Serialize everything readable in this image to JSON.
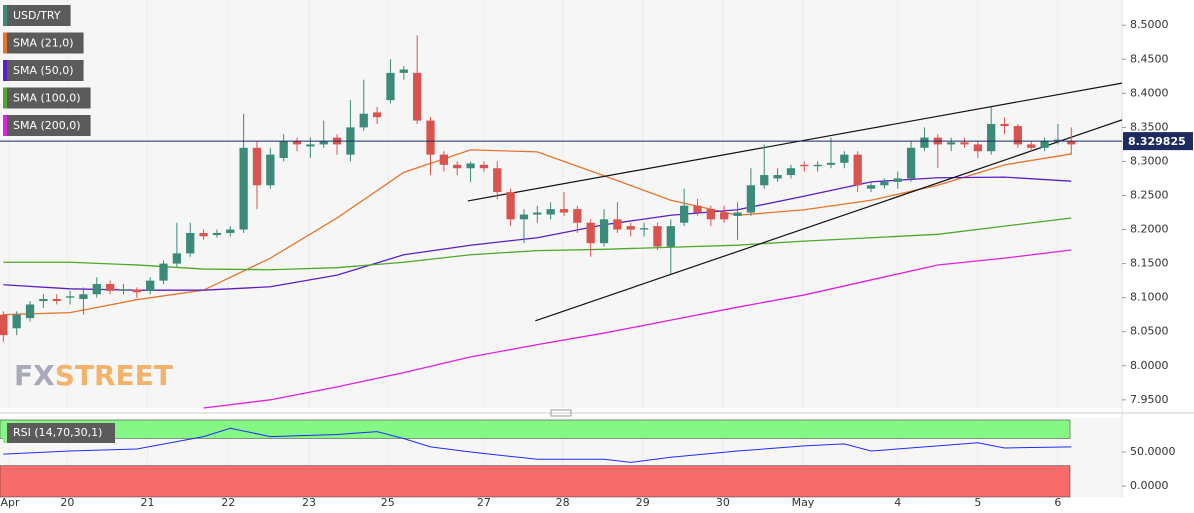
{
  "chart_data": [
    {
      "type": "candlestick",
      "name": "USD/TRY",
      "up_color": "#3b8a7a",
      "down_color": "#d9534f",
      "open": [
        8.075,
        8.055,
        8.07,
        8.095,
        8.098,
        8.1,
        8.098,
        8.105,
        8.12,
        8.11,
        8.112,
        8.11,
        8.125,
        8.15,
        8.165,
        8.195,
        8.192,
        8.195,
        8.2,
        8.32,
        8.265,
        8.305,
        8.33,
        8.322,
        8.325,
        8.335,
        8.31,
        8.35,
        8.372,
        8.39,
        8.43,
        8.43,
        8.36,
        8.31,
        8.295,
        8.29,
        8.295,
        8.29,
        8.255,
        8.215,
        8.222,
        8.222,
        8.23,
        8.23,
        8.21,
        8.18,
        8.215,
        8.205,
        8.2,
        8.205,
        8.175,
        8.21,
        8.235,
        8.23,
        8.225,
        8.22,
        8.225,
        8.265,
        8.275,
        8.28,
        8.295,
        8.293,
        8.295,
        8.298,
        8.31,
        8.26,
        8.265,
        8.27,
        8.275,
        8.32,
        8.335,
        8.325,
        8.328,
        8.325,
        8.315,
        8.355,
        8.352,
        8.325,
        8.32,
        8.33,
        8.33
      ],
      "high": [
        8.08,
        8.08,
        8.095,
        8.105,
        8.105,
        8.11,
        8.115,
        8.13,
        8.125,
        8.12,
        8.115,
        8.13,
        8.155,
        8.21,
        8.21,
        8.2,
        8.2,
        8.205,
        8.37,
        8.33,
        8.32,
        8.34,
        8.335,
        8.335,
        8.36,
        8.34,
        8.39,
        8.42,
        8.38,
        8.45,
        8.44,
        8.485,
        8.365,
        8.315,
        8.3,
        8.3,
        8.3,
        8.3,
        8.26,
        8.23,
        8.235,
        8.24,
        8.255,
        8.235,
        8.215,
        8.23,
        8.24,
        8.21,
        8.21,
        8.21,
        8.215,
        8.26,
        8.245,
        8.235,
        8.235,
        8.24,
        8.29,
        8.325,
        8.29,
        8.295,
        8.3,
        8.3,
        8.335,
        8.315,
        8.315,
        8.27,
        8.275,
        8.285,
        8.33,
        8.35,
        8.34,
        8.335,
        8.335,
        8.33,
        8.38,
        8.365,
        8.355,
        8.33,
        8.335,
        8.355,
        8.35
      ],
      "low": [
        8.035,
        8.045,
        8.065,
        8.085,
        8.09,
        8.09,
        8.075,
        8.1,
        8.105,
        8.105,
        8.1,
        8.105,
        8.12,
        8.145,
        8.16,
        8.185,
        8.188,
        8.19,
        8.195,
        8.23,
        8.26,
        8.3,
        8.315,
        8.305,
        8.32,
        8.31,
        8.3,
        8.345,
        8.355,
        8.385,
        8.42,
        8.355,
        8.28,
        8.285,
        8.28,
        8.27,
        8.285,
        8.245,
        8.205,
        8.18,
        8.21,
        8.215,
        8.22,
        8.195,
        8.16,
        8.175,
        8.195,
        8.19,
        8.19,
        8.17,
        8.135,
        8.205,
        8.22,
        8.205,
        8.21,
        8.185,
        8.22,
        8.26,
        8.27,
        8.275,
        8.285,
        8.285,
        8.29,
        8.29,
        8.255,
        8.255,
        8.26,
        8.26,
        8.27,
        8.315,
        8.29,
        8.315,
        8.32,
        8.305,
        8.31,
        8.34,
        8.32,
        8.315,
        8.315,
        8.325,
        8.31
      ],
      "close": [
        8.045,
        8.075,
        8.09,
        8.098,
        8.095,
        8.102,
        8.105,
        8.12,
        8.11,
        8.112,
        8.108,
        8.125,
        8.15,
        8.165,
        8.195,
        8.19,
        8.195,
        8.2,
        8.32,
        8.265,
        8.31,
        8.33,
        8.325,
        8.325,
        8.33,
        8.325,
        8.35,
        8.37,
        8.365,
        8.43,
        8.435,
        8.36,
        8.31,
        8.295,
        8.29,
        8.297,
        8.29,
        8.255,
        8.215,
        8.222,
        8.225,
        8.23,
        8.225,
        8.21,
        8.18,
        8.215,
        8.2,
        8.2,
        8.202,
        8.175,
        8.205,
        8.235,
        8.225,
        8.215,
        8.215,
        8.225,
        8.265,
        8.28,
        8.28,
        8.29,
        8.293,
        8.295,
        8.298,
        8.31,
        8.265,
        8.265,
        8.27,
        8.275,
        8.32,
        8.335,
        8.325,
        8.328,
        8.325,
        8.315,
        8.355,
        8.352,
        8.325,
        8.32,
        8.33,
        8.332,
        8.325
      ],
      "overlays": [
        {
          "name": "SMA (21,0)",
          "color": "#e8742a",
          "x": [
            0,
            5,
            10,
            15,
            20,
            25,
            30,
            35,
            40,
            45,
            50,
            55,
            60,
            65,
            70,
            75,
            80
          ],
          "values": [
            8.075,
            8.078,
            8.097,
            8.111,
            8.158,
            8.217,
            8.284,
            8.317,
            8.314,
            8.279,
            8.243,
            8.221,
            8.229,
            8.243,
            8.265,
            8.295,
            8.311
          ]
        },
        {
          "name": "SMA (50,0)",
          "color": "#5a1fc7",
          "x": [
            0,
            5,
            10,
            15,
            20,
            25,
            30,
            35,
            40,
            45,
            50,
            55,
            60,
            65,
            70,
            75,
            80
          ],
          "values": [
            8.119,
            8.113,
            8.111,
            8.111,
            8.116,
            8.133,
            8.163,
            8.177,
            8.188,
            8.207,
            8.221,
            8.229,
            8.249,
            8.27,
            8.276,
            8.277,
            8.271
          ]
        },
        {
          "name": "SMA (100,0)",
          "color": "#4fa82a",
          "x": [
            0,
            5,
            10,
            15,
            20,
            25,
            30,
            35,
            40,
            45,
            50,
            55,
            60,
            65,
            70,
            75,
            80
          ],
          "values": [
            8.152,
            8.152,
            8.148,
            8.142,
            8.141,
            8.144,
            8.152,
            8.163,
            8.169,
            8.171,
            8.174,
            8.177,
            8.183,
            8.188,
            8.193,
            8.205,
            8.217
          ]
        },
        {
          "name": "SMA (200,0)",
          "color": "#e020e0",
          "x": [
            0,
            5,
            10,
            15,
            20,
            25,
            30,
            35,
            40,
            45,
            50,
            55,
            60,
            65,
            70,
            75,
            80
          ],
          "values": [
            null,
            null,
            null,
            7.938,
            7.95,
            7.969,
            7.99,
            8.013,
            8.031,
            8.048,
            8.067,
            8.086,
            8.104,
            8.126,
            8.148,
            8.158,
            8.17
          ]
        }
      ],
      "trendlines": [
        {
          "color": "#111111",
          "x": [
            34.8,
            83.8
          ],
          "values": [
            8.242,
            8.415
          ]
        },
        {
          "color": "#111111",
          "x": [
            39.85,
            83.8
          ],
          "values": [
            8.066,
            8.361
          ]
        }
      ],
      "last_price": 8.329825,
      "last_price_color": "#1d2b5e",
      "xlim": [
        -0.25,
        83.8
      ],
      "ylim": [
        7.938,
        8.537
      ],
      "yticks": [
        {
          "value": 7.95,
          "label": "7.9500"
        },
        {
          "value": 8.0,
          "label": "8.0000"
        },
        {
          "value": 8.05,
          "label": "8.0500"
        },
        {
          "value": 8.1,
          "label": "8.1000"
        },
        {
          "value": 8.15,
          "label": "8.1500"
        },
        {
          "value": 8.2,
          "label": "8.2000"
        },
        {
          "value": 8.25,
          "label": "8.2500"
        },
        {
          "value": 8.3,
          "label": "8.3000"
        },
        {
          "value": 8.35,
          "label": "8.3500"
        },
        {
          "value": 8.4,
          "label": "8.4000"
        },
        {
          "value": 8.45,
          "label": "8.4500"
        },
        {
          "value": 8.5,
          "label": "8.5000"
        }
      ],
      "watermark": [
        "FX",
        "STREET"
      ]
    },
    {
      "type": "line",
      "series": [
        {
          "name": "RSI (14,70,30,1)",
          "color": "#1f2bff",
          "x": [
            0,
            5,
            10,
            15,
            17,
            20,
            25,
            28,
            30,
            32,
            35,
            40,
            45,
            47,
            50,
            55,
            60,
            63,
            65,
            70,
            73,
            75,
            80
          ],
          "values": [
            47,
            51.5,
            54.5,
            72.7,
            85,
            72.7,
            75.8,
            80,
            69.7,
            57.6,
            50,
            39.4,
            39.4,
            34.8,
            42.4,
            51.5,
            59,
            62,
            51.5,
            59,
            63.6,
            56,
            57.6
          ]
        }
      ],
      "overbought": 70,
      "oversold": 30,
      "overbought_color": "#84f784",
      "oversold_color": "#f76b6b",
      "xlim": [
        -0.25,
        83.8
      ],
      "ylim": [
        -16,
        100
      ],
      "yticks": [
        {
          "value": 50,
          "label": "50.0000"
        },
        {
          "value": 0,
          "label": "0.0000"
        }
      ],
      "xticks": [
        {
          "value": 0.45,
          "label": "Apr"
        },
        {
          "value": 4.8,
          "label": "20"
        },
        {
          "value": 10.8,
          "label": "21"
        },
        {
          "value": 16.85,
          "label": "22"
        },
        {
          "value": 22.9,
          "label": "23"
        },
        {
          "value": 28.8,
          "label": "25"
        },
        {
          "value": 36,
          "label": "27"
        },
        {
          "value": 41.9,
          "label": "28"
        },
        {
          "value": 47.9,
          "label": "29"
        },
        {
          "value": 53.9,
          "label": "30"
        },
        {
          "value": 59.9,
          "label": "May"
        },
        {
          "value": 67,
          "label": "4"
        },
        {
          "value": 73,
          "label": "5"
        },
        {
          "value": 79,
          "label": "6"
        }
      ]
    }
  ]
}
